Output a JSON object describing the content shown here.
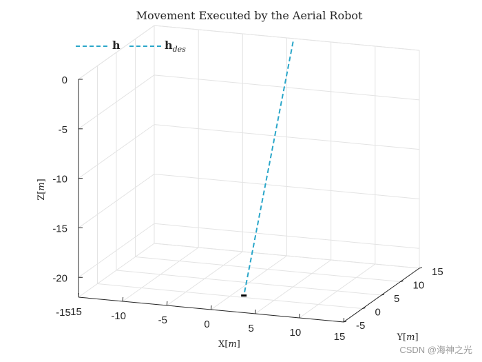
{
  "chart_data": {
    "type": "line3d",
    "title": "Movement Executed by the Aerial Robot",
    "xlabel": "X[m]",
    "ylabel": "Y[m]",
    "zlabel": "Z[m]",
    "xlim": [
      -15,
      15
    ],
    "ylim": [
      -5,
      15
    ],
    "zlim": [
      -22,
      0
    ],
    "xticks": [
      "-15",
      "-10",
      "-5",
      "0",
      "5",
      "10",
      "15"
    ],
    "yticks": [
      "-5",
      "0",
      "5",
      "10",
      "15"
    ],
    "zticks": [
      "-20",
      "-15",
      "-10",
      "-5",
      "0"
    ],
    "grid": true,
    "legend_position": "top-left",
    "series": [
      {
        "name": "h",
        "color": "#29a6c9",
        "style": "dashed",
        "points": [
          {
            "x": 2,
            "y": 12,
            "z": 0.6
          },
          {
            "x": 2,
            "y": -1,
            "z": -21.5
          }
        ]
      },
      {
        "name": "h_des",
        "color": "#29a6c9",
        "style": "dashed",
        "points": []
      }
    ],
    "marker": {
      "label": "end marker",
      "color": "#000000",
      "x": 2,
      "y": -1,
      "z": -21.5
    }
  },
  "legend": {
    "h_label": "h",
    "hdes_base": "h",
    "hdes_sub": "des"
  },
  "watermark": "CSDN @海神之光"
}
